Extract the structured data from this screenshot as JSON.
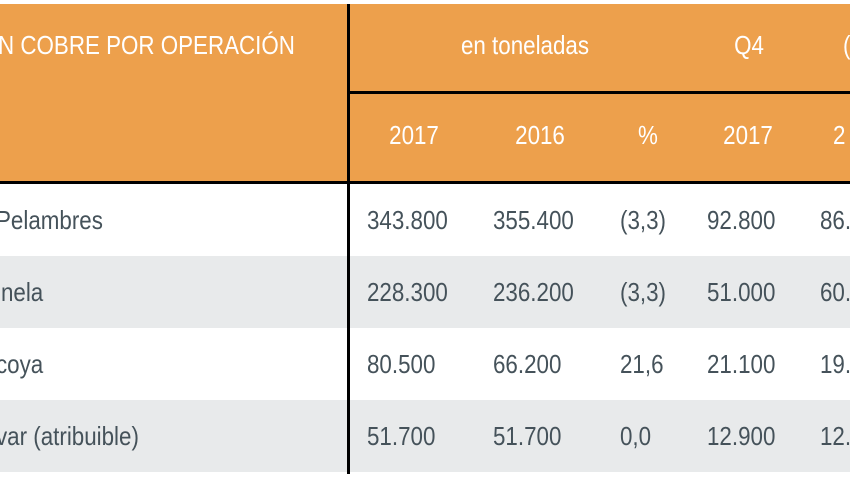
{
  "header": {
    "title": "N COBRE POR OPERACIÓN",
    "group_tonnes": "en toneladas",
    "group_q4": "Q4",
    "group_next_partial": "(",
    "years": [
      "2017",
      "2016",
      "%",
      "2017",
      "2"
    ]
  },
  "rows": [
    {
      "label": "Pelambres",
      "v2017": "343.800",
      "v2016": "355.400",
      "pct": "(3,3)",
      "q4_2017": "92.800",
      "q4_2016": "86."
    },
    {
      "label": "inela",
      "v2017": "228.300",
      "v2016": "236.200",
      "pct": "(3,3)",
      "q4_2017": "51.000",
      "q4_2016": "60."
    },
    {
      "label": "coya",
      "v2017": "80.500",
      "v2016": "66.200",
      "pct": "21,6",
      "q4_2017": "21.100",
      "q4_2016": "19."
    },
    {
      "label": "var (atribuible)",
      "v2017": "51.700",
      "v2016": "51.700",
      "pct": "0,0",
      "q4_2017": "12.900",
      "q4_2016": "12."
    }
  ],
  "colors": {
    "header_bg": "#eda04c",
    "alt_row": "#e8eaeb",
    "text": "#45525a"
  }
}
